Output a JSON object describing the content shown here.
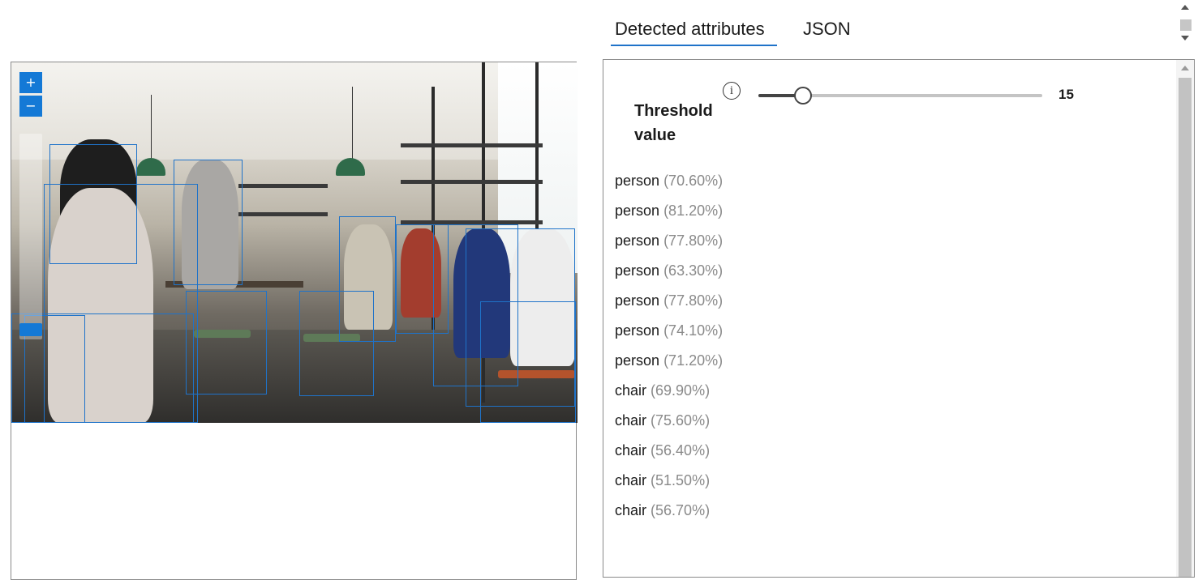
{
  "tabs": [
    {
      "label": "Detected attributes",
      "active": true
    },
    {
      "label": "JSON",
      "active": false
    }
  ],
  "viewer": {
    "zoom_in_label": "+",
    "zoom_out_label": "−",
    "zoom_level": 0.1,
    "image_description_semantic": "cafe-photo"
  },
  "threshold": {
    "label": "Threshold value",
    "info_icon": "info-icon",
    "value": "15",
    "slider_fraction": 0.15
  },
  "attributes": [
    {
      "name": "person",
      "confidence": "(70.60%)"
    },
    {
      "name": "person",
      "confidence": "(81.20%)"
    },
    {
      "name": "person",
      "confidence": "(77.80%)"
    },
    {
      "name": "person",
      "confidence": "(63.30%)"
    },
    {
      "name": "person",
      "confidence": "(77.80%)"
    },
    {
      "name": "person",
      "confidence": "(74.10%)"
    },
    {
      "name": "person",
      "confidence": "(71.20%)"
    },
    {
      "name": "chair",
      "confidence": "(69.90%)"
    },
    {
      "name": "chair",
      "confidence": "(75.60%)"
    },
    {
      "name": "chair",
      "confidence": "(56.40%)"
    },
    {
      "name": "chair",
      "confidence": "(51.50%)"
    },
    {
      "name": "chair",
      "confidence": "(56.70%)"
    }
  ],
  "colors": {
    "accent": "#1f73c9",
    "zoom_button": "#1479d6",
    "confidence_text": "#8a8a8a"
  }
}
